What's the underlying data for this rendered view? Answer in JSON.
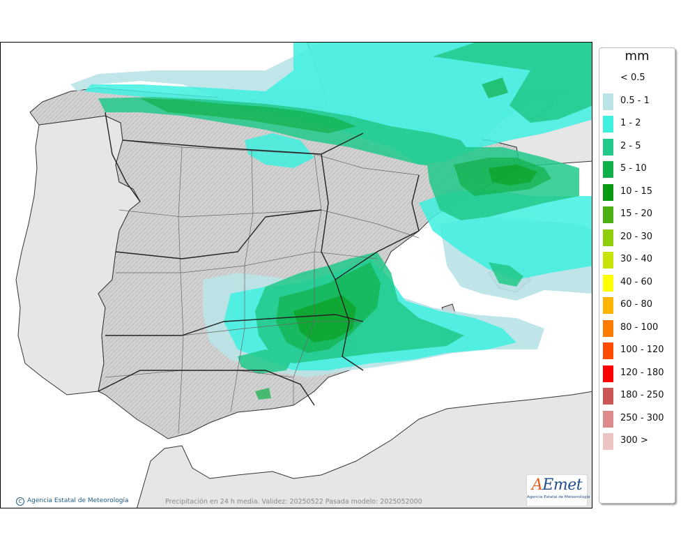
{
  "legend": {
    "unit": "mm",
    "items": [
      {
        "label": "< 0.5",
        "color": "#ffffff"
      },
      {
        "label": "0.5 - 1",
        "color": "#b9e3e7"
      },
      {
        "label": "1 - 2",
        "color": "#3ff0e0"
      },
      {
        "label": "2 - 5",
        "color": "#22c98a"
      },
      {
        "label": "5 - 10",
        "color": "#10b04a"
      },
      {
        "label": "10 - 15",
        "color": "#0a9a12"
      },
      {
        "label": "15 - 20",
        "color": "#4caf14"
      },
      {
        "label": "20 - 30",
        "color": "#8fce0a"
      },
      {
        "label": "30 - 40",
        "color": "#c8e30a"
      },
      {
        "label": "40 - 60",
        "color": "#ffff00"
      },
      {
        "label": "60 - 80",
        "color": "#ffb400"
      },
      {
        "label": "80 - 100",
        "color": "#ff7b00"
      },
      {
        "label": "100 - 120",
        "color": "#ff4a00"
      },
      {
        "label": "120 - 180",
        "color": "#ff0000"
      },
      {
        "label": "180 - 250",
        "color": "#cc5555"
      },
      {
        "label": "250 - 300",
        "color": "#dc8a8a"
      },
      {
        "label": "300 >",
        "color": "#ecc4c4"
      }
    ]
  },
  "map": {
    "copyright": "Agencia Estatal de Meteorología",
    "footer": "Precipitación en 24 h media. Validez: 20250522 Pasada modelo: 2025052000",
    "logo": {
      "text_a": "A",
      "text_rest": "Emet",
      "subtitle": "Agencia Estatal de Meteorología"
    },
    "colors": {
      "sea": "#ffffff",
      "land": "#d4d4d4",
      "foreign_land": "#e6e6e6",
      "borders": "#333333"
    }
  }
}
